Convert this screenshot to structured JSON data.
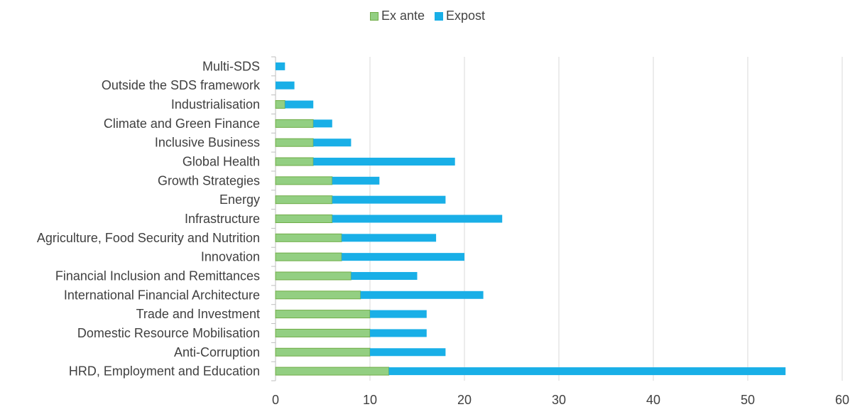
{
  "chart_data": {
    "type": "bar",
    "orientation": "horizontal",
    "stacked": true,
    "categories": [
      "Multi-SDS",
      "Outside the SDS framework",
      "Industrialisation",
      "Climate and Green Finance",
      "Inclusive Business",
      "Global Health",
      "Growth Strategies",
      "Energy",
      "Infrastructure",
      "Agriculture, Food Security and Nutrition",
      "Innovation",
      "Financial Inclusion and Remittances",
      "International Financial Architecture",
      "Trade and Investment",
      "Domestic Resource Mobilisation",
      "Anti-Corruption",
      "HRD, Employment and Education"
    ],
    "series": [
      {
        "name": "Ex ante",
        "color": "#93cf82",
        "stroke": "#70ad47",
        "values": [
          0,
          0,
          1,
          4,
          4,
          4,
          6,
          6,
          6,
          7,
          7,
          8,
          9,
          10,
          10,
          10,
          12
        ]
      },
      {
        "name": "Expost",
        "color": "#19afe7",
        "values": [
          1,
          2,
          3,
          2,
          4,
          15,
          5,
          12,
          18,
          10,
          13,
          7,
          13,
          6,
          6,
          8,
          42
        ]
      }
    ],
    "xlim": [
      0,
      60
    ],
    "xticks": [
      "0",
      "10",
      "20",
      "30",
      "40",
      "50",
      "60"
    ],
    "grid": true,
    "legend": "top-center",
    "title": "",
    "xlabel": "",
    "ylabel": ""
  }
}
